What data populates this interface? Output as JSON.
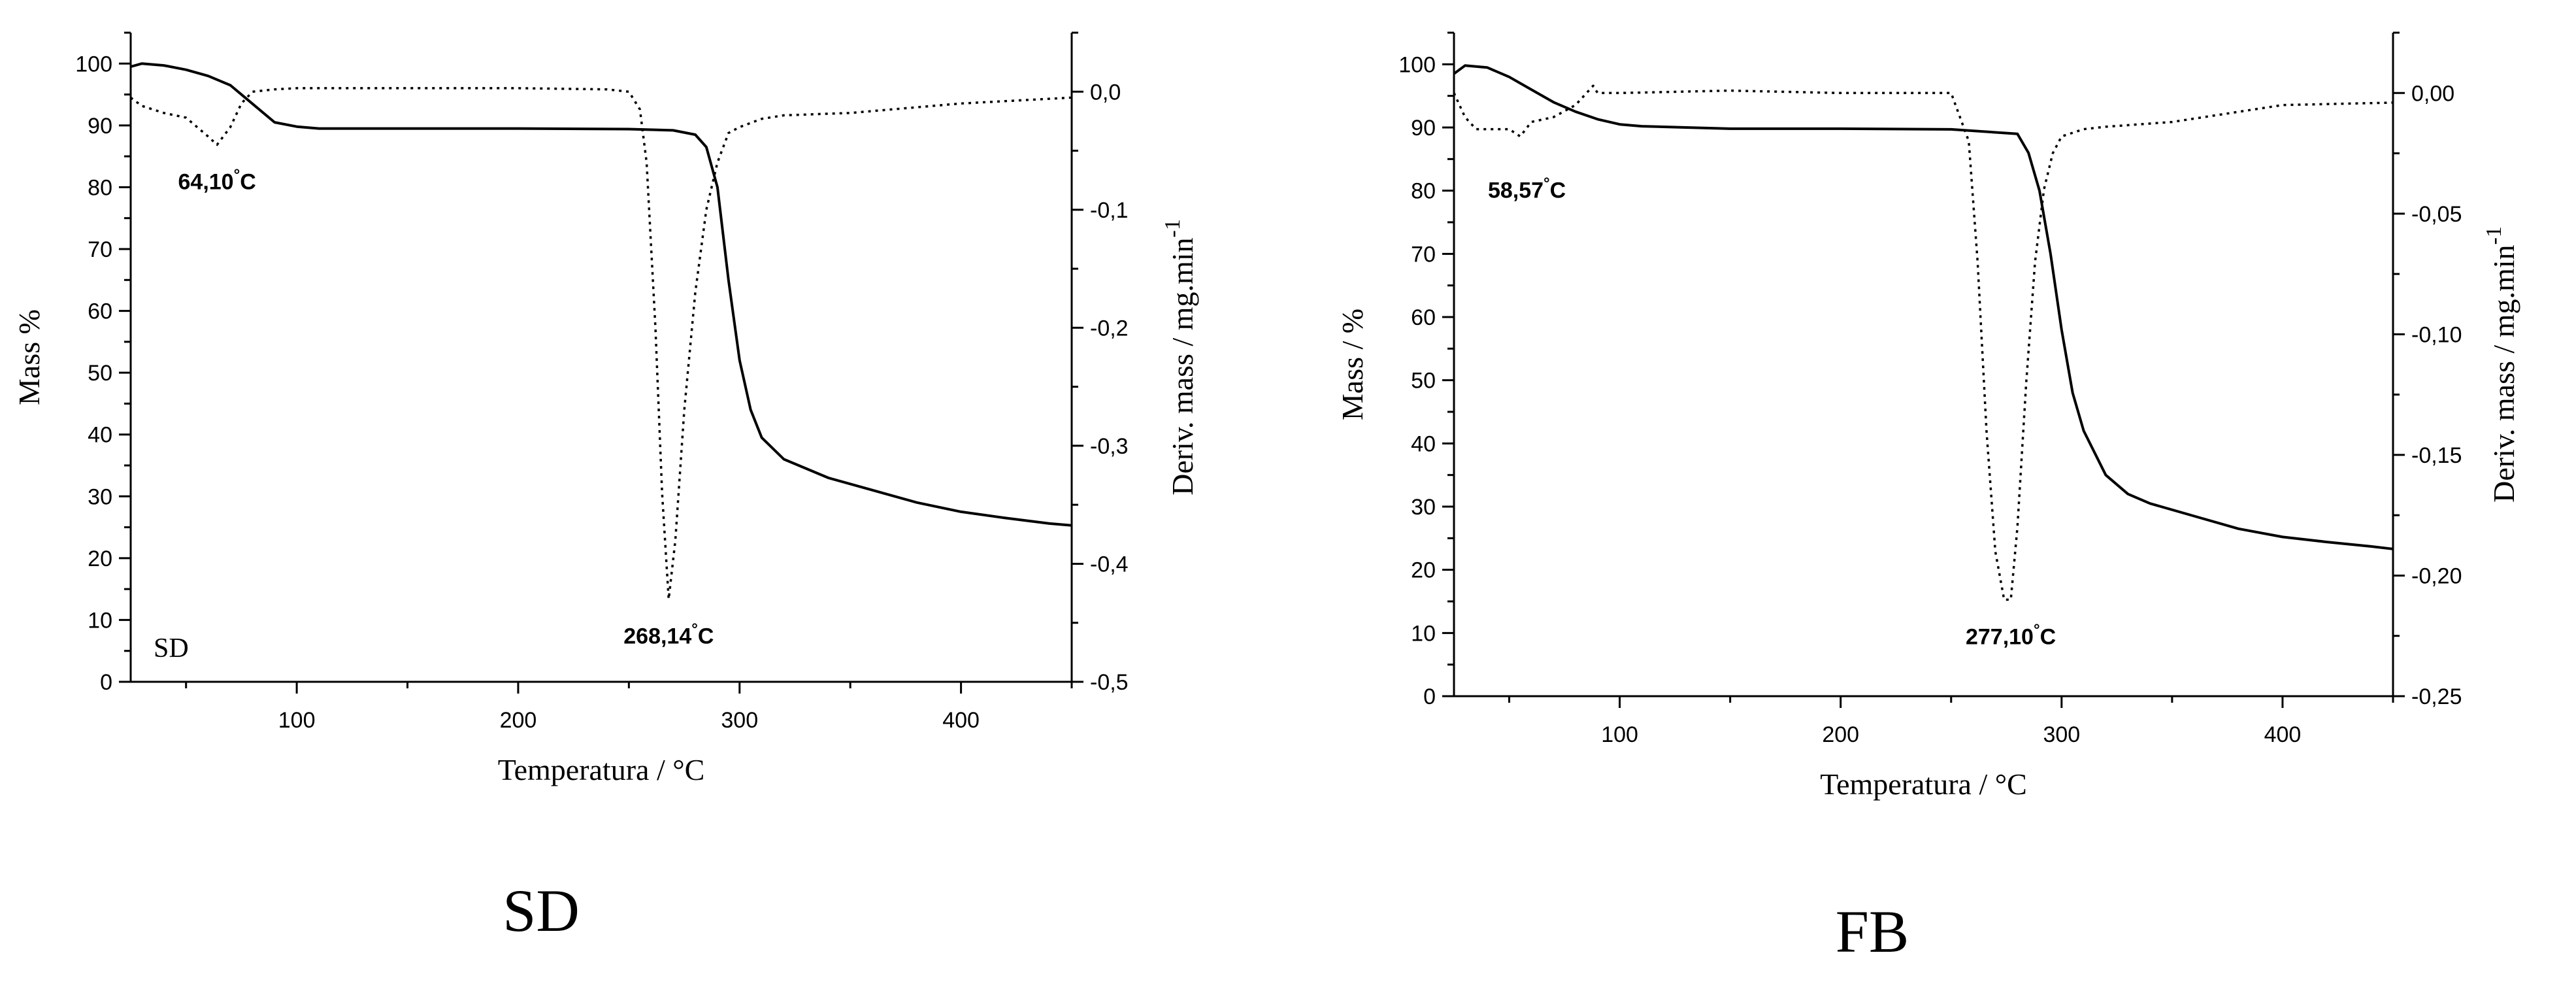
{
  "captions": {
    "left": "SD",
    "right": "FB"
  },
  "chart_data": [
    {
      "type": "line",
      "panel_label": "SD",
      "xlabel": "Temperatura / °C",
      "ylabel": "Mass %",
      "y2label": "Deriv. mass / mg.min",
      "y2label_sup": "-1",
      "xlim": [
        25,
        450
      ],
      "ylim": [
        0,
        105
      ],
      "y2lim": [
        -0.5,
        0.05
      ],
      "xticks": [
        100,
        200,
        300,
        400
      ],
      "xtick_labels": [
        "100",
        "200",
        "300",
        "400"
      ],
      "yticks": [
        0,
        10,
        20,
        30,
        40,
        50,
        60,
        70,
        80,
        90,
        100
      ],
      "ytick_labels": [
        "0",
        "10",
        "20",
        "30",
        "40",
        "50",
        "60",
        "70",
        "80",
        "90",
        "100"
      ],
      "y2ticks": [
        0.0,
        -0.1,
        -0.2,
        -0.3,
        -0.4,
        -0.5
      ],
      "y2tick_labels": [
        "0,0",
        "-0,1",
        "-0,2",
        "-0,3",
        "-0,4",
        "-0,5"
      ],
      "grid": false,
      "series": [
        {
          "axis": "left",
          "style": "solid",
          "x": [
            25,
            30,
            40,
            50,
            60,
            70,
            80,
            90,
            100,
            110,
            150,
            200,
            250,
            270,
            280,
            285,
            290,
            295,
            300,
            305,
            310,
            320,
            340,
            360,
            380,
            400,
            420,
            440,
            450
          ],
          "y": [
            99.5,
            100,
            99.7,
            99,
            98,
            96.5,
            93.5,
            90.5,
            89.8,
            89.5,
            89.5,
            89.5,
            89.4,
            89.2,
            88.5,
            86.5,
            80,
            65,
            52,
            44,
            39.5,
            36,
            33,
            31,
            29,
            27.5,
            26.5,
            25.6,
            25.3
          ]
        },
        {
          "axis": "right",
          "style": "dotted",
          "x": [
            25,
            30,
            40,
            50,
            55,
            60,
            64,
            70,
            75,
            80,
            90,
            100,
            150,
            200,
            240,
            250,
            255,
            258,
            262,
            265,
            268,
            271,
            275,
            280,
            285,
            290,
            295,
            300,
            310,
            320,
            350,
            400,
            450
          ],
          "y": [
            -0.005,
            -0.012,
            -0.018,
            -0.022,
            -0.03,
            -0.038,
            -0.045,
            -0.03,
            -0.01,
            0.0,
            0.002,
            0.003,
            0.003,
            0.003,
            0.002,
            0.0,
            -0.015,
            -0.06,
            -0.2,
            -0.34,
            -0.43,
            -0.38,
            -0.27,
            -0.17,
            -0.1,
            -0.06,
            -0.035,
            -0.03,
            -0.023,
            -0.02,
            -0.018,
            -0.01,
            -0.005
          ]
        }
      ],
      "annotations": [
        {
          "text": "64,10",
          "suffix": "C",
          "x": 64,
          "y_right": -0.045
        },
        {
          "text": "268,14",
          "suffix": "C",
          "x": 268,
          "y_right": -0.43
        }
      ]
    },
    {
      "type": "line",
      "panel_label": "",
      "xlabel": "Temperatura / °C",
      "ylabel": "Mass / %",
      "y2label": "Deriv. mass / mg.min",
      "y2label_sup": "-1",
      "xlim": [
        25,
        450
      ],
      "ylim": [
        0,
        105
      ],
      "y2lim": [
        -0.25,
        0.025
      ],
      "xticks": [
        100,
        200,
        300,
        400
      ],
      "xtick_labels": [
        "100",
        "200",
        "300",
        "400"
      ],
      "yticks": [
        0,
        10,
        20,
        30,
        40,
        50,
        60,
        70,
        80,
        90,
        100
      ],
      "ytick_labels": [
        "0",
        "10",
        "20",
        "30",
        "40",
        "50",
        "60",
        "70",
        "80",
        "90",
        "100"
      ],
      "y2ticks": [
        0.0,
        -0.05,
        -0.1,
        -0.15,
        -0.2,
        -0.25
      ],
      "y2tick_labels": [
        "0,00",
        "-0,05",
        "-0,10",
        "-0,15",
        "-0,20",
        "-0,25"
      ],
      "grid": false,
      "series": [
        {
          "axis": "left",
          "style": "solid",
          "x": [
            25,
            30,
            40,
            50,
            60,
            70,
            80,
            90,
            100,
            110,
            150,
            200,
            250,
            280,
            285,
            290,
            295,
            300,
            305,
            310,
            320,
            330,
            340,
            360,
            380,
            400,
            420,
            440,
            450
          ],
          "y": [
            98.5,
            99.8,
            99.5,
            98,
            96,
            94,
            92.5,
            91.3,
            90.5,
            90.2,
            89.8,
            89.8,
            89.7,
            89,
            86,
            80,
            70,
            58,
            48,
            42,
            35,
            32,
            30.5,
            28.5,
            26.5,
            25.2,
            24.4,
            23.7,
            23.3
          ]
        },
        {
          "axis": "right",
          "style": "dotted",
          "x": [
            25,
            30,
            35,
            40,
            50,
            55,
            60,
            70,
            80,
            85,
            88,
            90,
            100,
            150,
            200,
            250,
            258,
            262,
            266,
            270,
            274,
            277,
            280,
            284,
            288,
            292,
            296,
            300,
            310,
            320,
            350,
            400,
            450
          ],
          "y": [
            0.0,
            -0.01,
            -0.015,
            -0.015,
            -0.015,
            -0.018,
            -0.012,
            -0.01,
            -0.005,
            0.0,
            0.003,
            0.0,
            0.0,
            0.001,
            0.0,
            0.0,
            -0.02,
            -0.07,
            -0.14,
            -0.19,
            -0.21,
            -0.21,
            -0.18,
            -0.12,
            -0.07,
            -0.04,
            -0.025,
            -0.018,
            -0.015,
            -0.014,
            -0.012,
            -0.005,
            -0.004
          ]
        }
      ],
      "annotations": [
        {
          "text": "58,57",
          "suffix": "C",
          "x": 58,
          "y_right": -0.025
        },
        {
          "text": "277,10",
          "suffix": "C",
          "x": 277,
          "y_right": -0.21
        }
      ]
    }
  ]
}
